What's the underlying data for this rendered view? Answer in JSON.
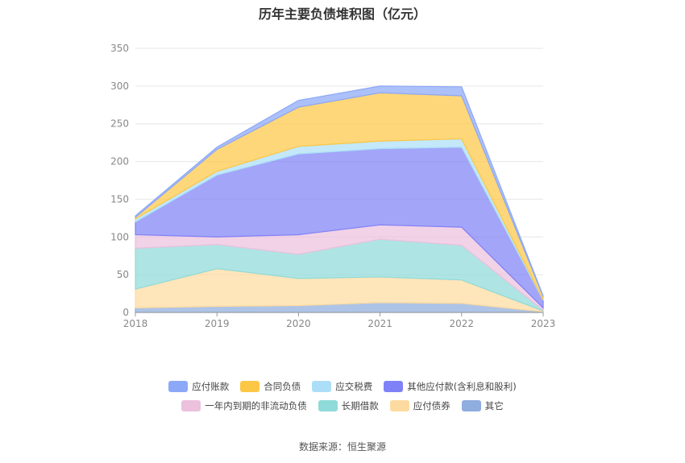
{
  "chart_data": {
    "type": "area",
    "stacked": true,
    "title": "历年主要负债堆积图（亿元）",
    "x": [
      "2018",
      "2019",
      "2020",
      "2021",
      "2022",
      "2023"
    ],
    "ylim": [
      0,
      350
    ],
    "yticks": [
      0,
      50,
      100,
      150,
      200,
      250,
      300,
      350
    ],
    "grid": true,
    "legend_position": "bottom",
    "series": [
      {
        "name": "其它",
        "color": "#8fadde",
        "values": [
          6,
          8,
          9,
          13,
          12,
          1
        ]
      },
      {
        "name": "应付债券",
        "color": "#fddba0",
        "values": [
          25,
          50,
          36,
          34,
          31,
          1
        ]
      },
      {
        "name": "长期借款",
        "color": "#8fdbd9",
        "values": [
          54,
          32,
          32,
          50,
          46,
          1
        ]
      },
      {
        "name": "一年内到期的非流动负债",
        "color": "#ebc1de",
        "values": [
          18,
          10,
          26,
          19,
          24,
          3
        ]
      },
      {
        "name": "其他应付款(含利息和股利)",
        "color": "#7f82f7",
        "values": [
          17,
          82,
          107,
          101,
          106,
          10
        ]
      },
      {
        "name": "应交税费",
        "color": "#acdff7",
        "values": [
          4,
          5,
          10,
          10,
          11,
          1
        ]
      },
      {
        "name": "合同负债",
        "color": "#fdc746",
        "values": [
          2,
          29,
          52,
          64,
          57,
          4
        ]
      },
      {
        "name": "应付账款",
        "color": "#8ca8f7",
        "values": [
          2,
          3,
          9,
          9,
          12,
          1
        ]
      }
    ]
  },
  "legend": {
    "row1": [
      "应付账款",
      "合同负债",
      "应交税费",
      "其他应付款(含利息和股利)"
    ],
    "row2": [
      "一年内到期的非流动负债",
      "长期借款",
      "应付债券",
      "其它"
    ]
  },
  "source": "数据来源：恒生聚源"
}
